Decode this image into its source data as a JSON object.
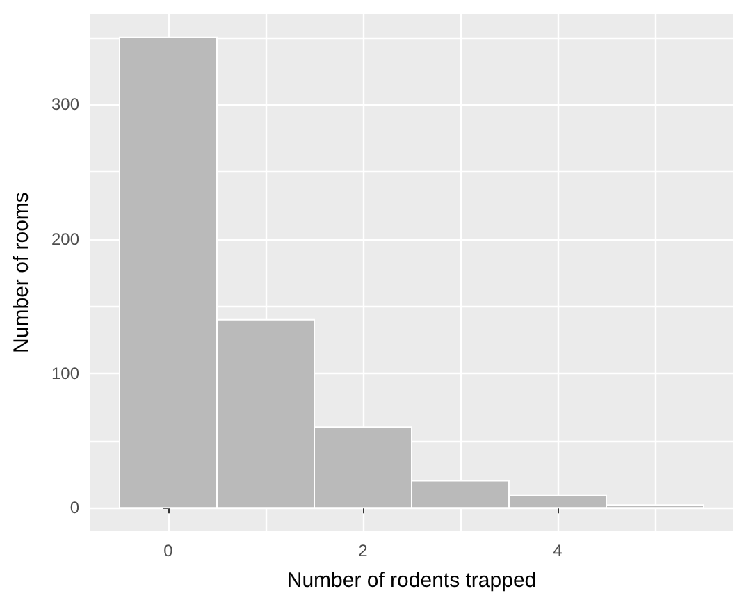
{
  "chart_data": {
    "type": "histogram",
    "xlabel": "Number of rodents trapped",
    "ylabel": "Number of rooms",
    "bins": [
      -0.5,
      0.5,
      1.5,
      2.5,
      3.5,
      4.5,
      5.5
    ],
    "values": [
      350,
      140,
      60,
      20,
      9,
      2
    ],
    "color": "#bababa",
    "xlim": [
      -0.8,
      5.8
    ],
    "xticks": [
      0,
      {
        "value": 1,
        "label": null
      },
      2,
      {
        "value": 3,
        "label": null
      },
      4,
      {
        "value": 5,
        "label": null
      }
    ],
    "ylim": [
      -17.5,
      367.5
    ],
    "yticks": [
      0,
      {
        "value": 50,
        "label": null
      },
      100,
      {
        "value": 150,
        "label": null
      },
      200,
      {
        "value": 250,
        "label": null
      },
      300,
      {
        "value": 350,
        "label": null
      }
    ],
    "grid": true
  }
}
